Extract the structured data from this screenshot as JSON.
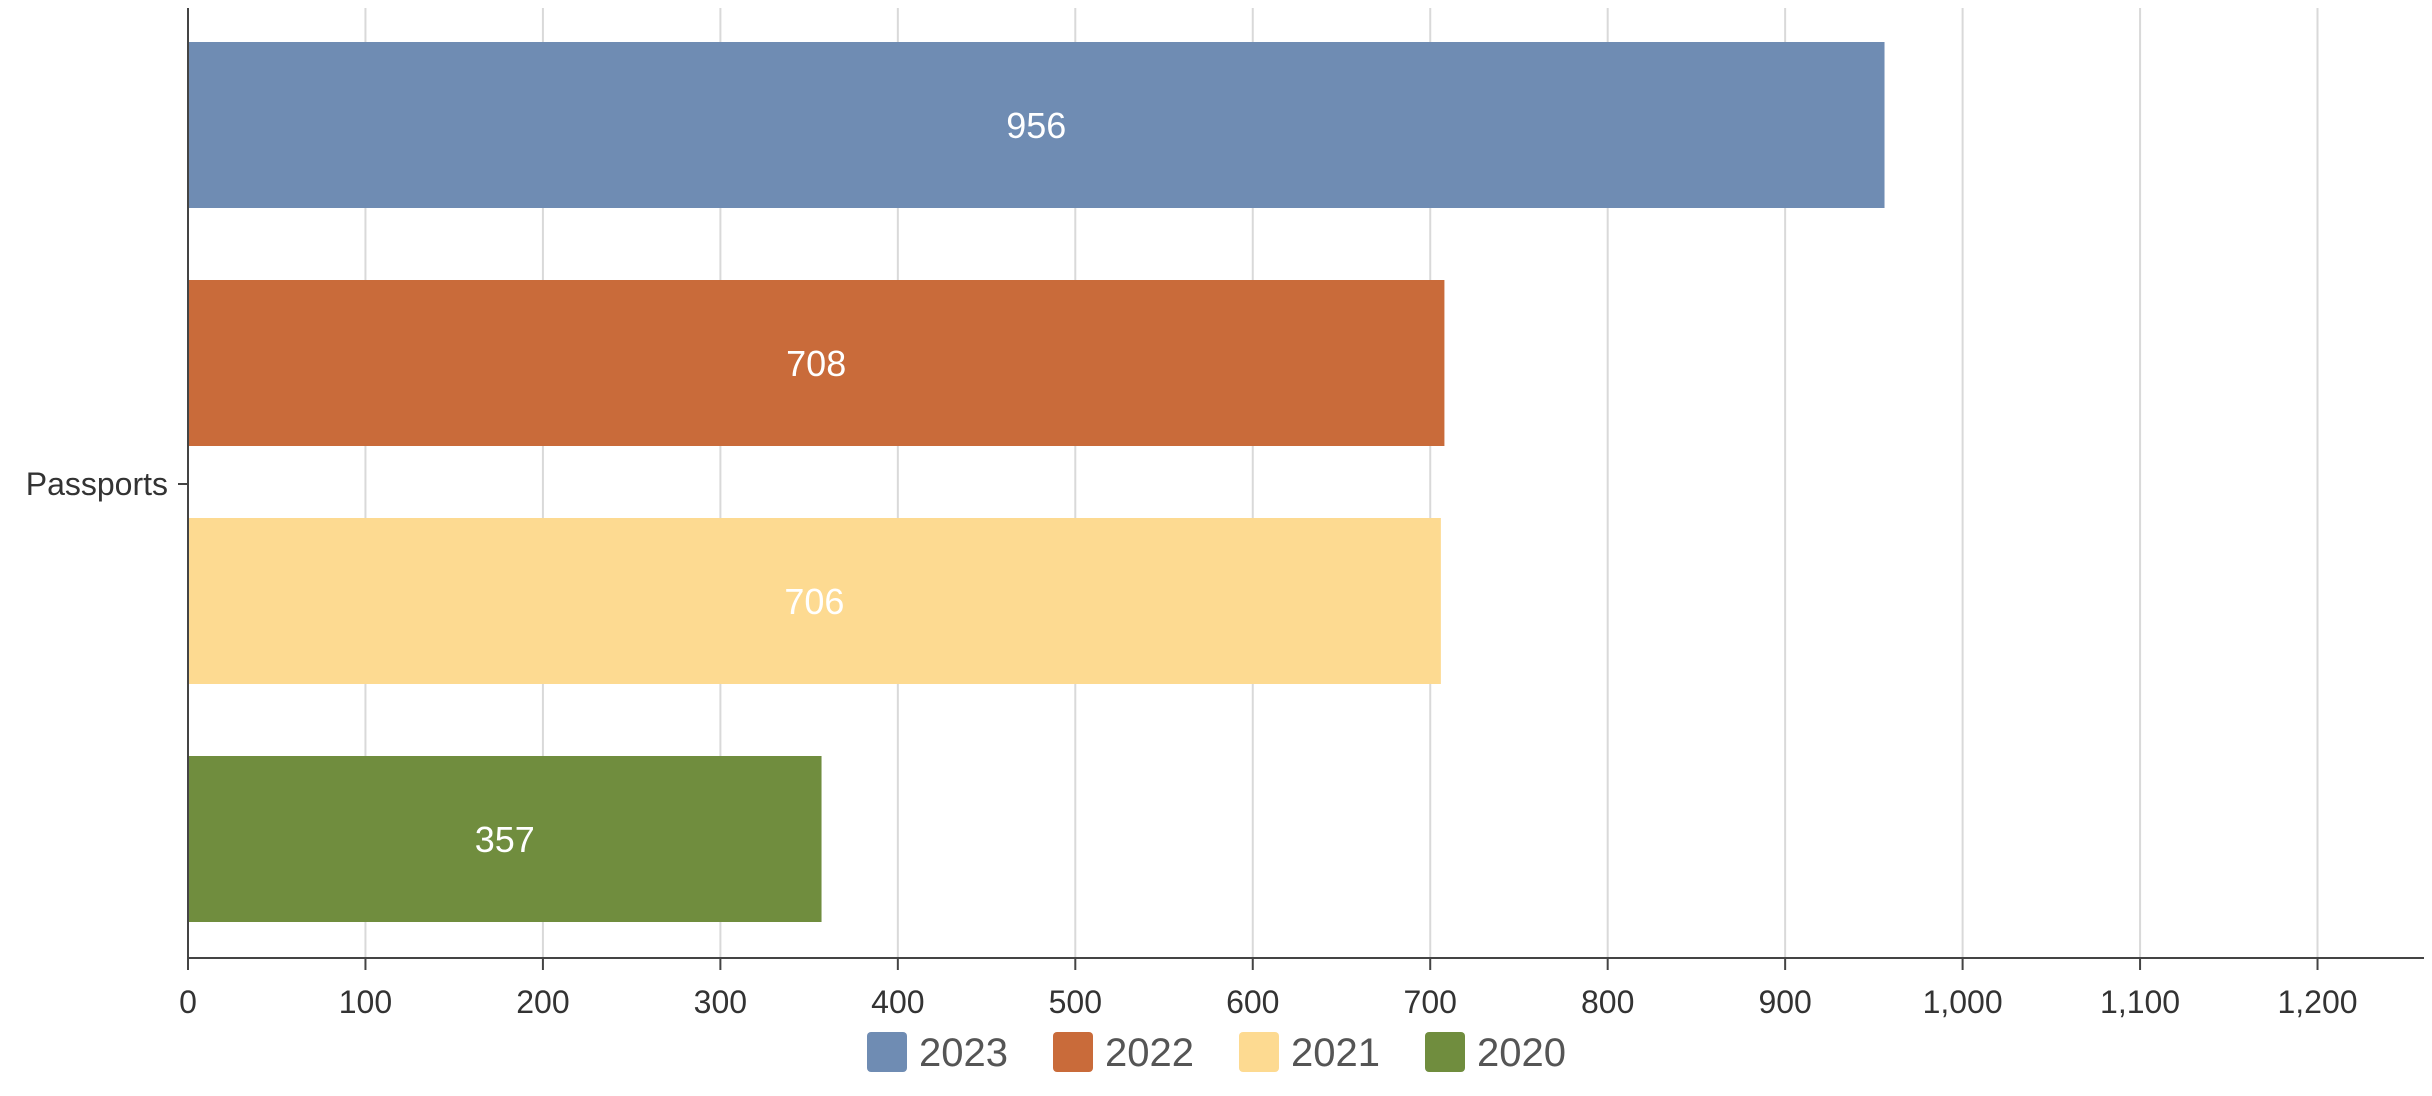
{
  "chart_data": {
    "type": "bar",
    "orientation": "horizontal",
    "categories": [
      "Passports"
    ],
    "series": [
      {
        "name": "2023",
        "values": [
          956
        ],
        "color": "#6f8cb3"
      },
      {
        "name": "2022",
        "values": [
          708
        ],
        "color": "#c96b3a"
      },
      {
        "name": "2021",
        "values": [
          706
        ],
        "color": "#fdda91"
      },
      {
        "name": "2020",
        "values": [
          357
        ],
        "color": "#708d3e"
      }
    ],
    "xlim": [
      0,
      1260
    ],
    "x_ticks": [
      0,
      100,
      200,
      300,
      400,
      500,
      600,
      700,
      800,
      900,
      1000,
      1100,
      1200
    ],
    "x_tick_labels": [
      "0",
      "100",
      "200",
      "300",
      "400",
      "500",
      "600",
      "700",
      "800",
      "900",
      "1,000",
      "1,100",
      "1,200"
    ],
    "title": "",
    "xlabel": "",
    "ylabel": "",
    "grid": true,
    "data_labels": true,
    "legend_position": "bottom-center"
  }
}
